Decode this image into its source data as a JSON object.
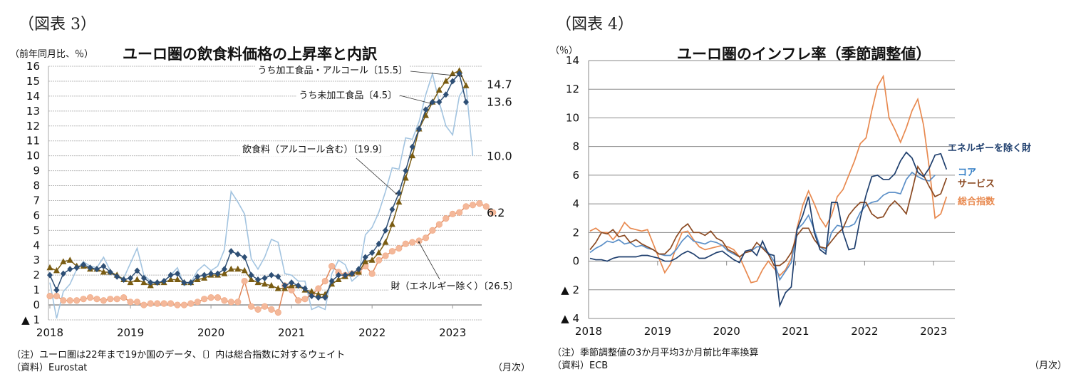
{
  "figures": {
    "fig3_label": "（図表 3）",
    "fig4_label": "（図表 4）"
  },
  "chart_data": [
    {
      "type": "line",
      "title": "ユーロ圏の飲食料価格の上昇率と内訳",
      "ylabel": "（前年同月比、％）",
      "xlabel": "（月次）",
      "ylim": [
        -1,
        16
      ],
      "yticks": [
        -1,
        0,
        1,
        2,
        3,
        4,
        5,
        6,
        7,
        8,
        9,
        10,
        11,
        12,
        13,
        14,
        15,
        16
      ],
      "ytick_labels": [
        "▲ 1",
        "0",
        "1",
        "2",
        "3",
        "4",
        "5",
        "6",
        "7",
        "8",
        "9",
        "10",
        "11",
        "12",
        "13",
        "14",
        "15",
        "16"
      ],
      "xticks": [
        "2018",
        "2019",
        "2020",
        "2021",
        "2022",
        "2023"
      ],
      "x_start": "2018-01",
      "x_end": "2023-04",
      "grid": true,
      "series": [
        {
          "name": "飲食料（アルコール含む）〔19.9〕",
          "color": "#2e4f75",
          "marker": "diamond",
          "end_label": "13.6",
          "values": [
            2.0,
            1.0,
            2.1,
            2.4,
            2.5,
            2.7,
            2.5,
            2.4,
            2.6,
            2.2,
            1.9,
            1.7,
            1.8,
            2.3,
            1.8,
            1.5,
            1.5,
            1.6,
            2.0,
            2.1,
            1.5,
            1.5,
            1.9,
            2.0,
            2.1,
            2.1,
            2.4,
            3.6,
            3.4,
            3.2,
            2.0,
            1.7,
            1.8,
            2.0,
            1.9,
            1.3,
            1.5,
            1.3,
            1.1,
            0.6,
            0.5,
            0.5,
            1.6,
            2.0,
            2.0,
            2.1,
            2.4,
            3.2,
            3.5,
            4.1,
            5.0,
            6.4,
            7.5,
            9.0,
            10.6,
            11.8,
            13.1,
            13.6,
            13.6,
            14.1,
            15.0,
            15.5,
            13.6
          ]
        },
        {
          "name": "うち加工食品・アルコール〔15.5〕",
          "color": "#7a5c12",
          "marker": "triangle",
          "end_label": "14.7",
          "values": [
            2.5,
            2.3,
            2.9,
            3.0,
            2.6,
            2.6,
            2.4,
            2.4,
            2.2,
            2.2,
            2.0,
            1.7,
            1.5,
            1.7,
            1.5,
            1.3,
            1.5,
            1.5,
            1.7,
            1.7,
            1.5,
            1.5,
            1.7,
            1.8,
            2.0,
            2.0,
            2.1,
            2.4,
            2.4,
            2.3,
            1.7,
            1.5,
            1.4,
            1.3,
            1.1,
            1.1,
            1.3,
            1.3,
            1.0,
            0.9,
            0.7,
            0.7,
            1.4,
            1.7,
            1.9,
            2.1,
            2.2,
            2.9,
            3.0,
            3.5,
            4.2,
            5.4,
            6.9,
            8.5,
            10.0,
            11.8,
            12.7,
            13.6,
            14.4,
            15.0,
            15.5,
            15.7,
            14.7
          ]
        },
        {
          "name": "うち未加工食品〔4.5〕",
          "color": "#a3c4e0",
          "marker": "none",
          "end_label": "10.0",
          "values": [
            1.5,
            -0.9,
            0.9,
            1.4,
            2.4,
            2.9,
            2.6,
            2.5,
            3.2,
            2.3,
            1.9,
            1.8,
            2.8,
            3.8,
            2.0,
            1.6,
            1.5,
            1.6,
            2.0,
            2.5,
            1.3,
            1.5,
            2.3,
            2.7,
            2.3,
            2.6,
            3.7,
            7.6,
            6.9,
            6.1,
            3.1,
            2.4,
            3.2,
            4.4,
            4.2,
            2.1,
            2.0,
            1.6,
            1.6,
            -0.3,
            -0.1,
            -0.3,
            2.1,
            3.0,
            2.7,
            1.6,
            2.0,
            4.7,
            5.2,
            6.2,
            7.6,
            9.2,
            9.1,
            11.2,
            11.1,
            12.3,
            14.1,
            15.5,
            13.6,
            12.0,
            11.4,
            14.0,
            14.7,
            10.0
          ]
        },
        {
          "name": "財（エネルギー除く）〔26.5〕",
          "color": "#f4b89a",
          "line_color": "#e0875a",
          "marker": "circle",
          "end_label": "6.2",
          "values": [
            0.6,
            0.6,
            0.3,
            0.3,
            0.3,
            0.4,
            0.5,
            0.4,
            0.3,
            0.4,
            0.4,
            0.5,
            0.2,
            0.2,
            0.0,
            0.1,
            0.1,
            0.1,
            0.1,
            0.0,
            0.0,
            0.1,
            0.2,
            0.4,
            0.5,
            0.5,
            0.3,
            0.2,
            0.2,
            1.6,
            -0.1,
            -0.3,
            -0.1,
            -0.3,
            -0.5,
            1.3,
            1.0,
            0.3,
            0.4,
            0.7,
            1.1,
            1.6,
            2.6,
            2.2,
            2.0,
            2.1,
            2.2,
            2.6,
            2.1,
            3.0,
            3.3,
            3.6,
            3.8,
            4.1,
            4.2,
            4.3,
            4.5,
            5.0,
            5.4,
            5.8,
            6.1,
            6.2,
            6.6,
            6.7,
            6.8,
            6.6,
            6.2
          ]
        }
      ],
      "annotations": [
        "うち加工食品・アルコール〔15.5〕",
        "うち未加工食品〔4.5〕",
        "飲食料（アルコール含む）〔19.9〕",
        "財（エネルギー除く）〔26.5〕"
      ],
      "note": "（注）ユーロ圏は22年まで19か国のデータ、〔〕内は総合指数に対するウェイト",
      "source": "（資料）Eurostat"
    },
    {
      "type": "line",
      "title": "ユーロ圏のインフレ率（季節調整値）",
      "ylabel": "（％）",
      "xlabel": "（月次）",
      "ylim": [
        -4,
        14
      ],
      "yticks": [
        -4,
        -2,
        0,
        2,
        4,
        6,
        8,
        10,
        12,
        14
      ],
      "ytick_labels": [
        "▲ 4",
        "▲ 2",
        "0",
        "2",
        "4",
        "6",
        "8",
        "10",
        "12",
        "14"
      ],
      "xticks": [
        "2018",
        "2019",
        "2020",
        "2021",
        "2022",
        "2023"
      ],
      "x_start": "2018-01",
      "x_end": "2023-04",
      "grid": true,
      "series": [
        {
          "name": "エネルギーを除く財",
          "color": "#1f3f6e",
          "values": [
            0.2,
            0.1,
            0.1,
            0.0,
            0.2,
            0.3,
            0.3,
            0.3,
            0.3,
            0.4,
            0.4,
            0.3,
            0.2,
            0.0,
            0.0,
            0.2,
            0.5,
            0.7,
            0.5,
            0.2,
            0.2,
            0.4,
            0.6,
            0.7,
            0.4,
            0.1,
            -0.1,
            0.7,
            0.8,
            0.4,
            1.4,
            0.5,
            0.4,
            -3.1,
            -2.2,
            -1.8,
            2.2,
            3.2,
            4.5,
            2.0,
            0.8,
            0.5,
            4.1,
            4.1,
            2.0,
            0.8,
            0.9,
            3.0,
            4.6,
            5.9,
            6.0,
            5.7,
            5.7,
            6.1,
            7.0,
            7.6,
            7.2,
            6.2,
            5.9,
            6.5,
            7.4,
            7.5,
            6.4
          ]
        },
        {
          "name": "コア",
          "color": "#5b8fc7",
          "values": [
            0.6,
            0.9,
            1.1,
            1.4,
            1.3,
            1.5,
            1.2,
            1.3,
            1.0,
            1.1,
            0.9,
            0.8,
            0.5,
            0.4,
            0.4,
            0.8,
            1.4,
            1.8,
            1.4,
            1.3,
            1.2,
            1.4,
            1.3,
            1.1,
            0.7,
            0.5,
            0.3,
            0.6,
            0.7,
            1.0,
            1.0,
            0.6,
            0.0,
            -1.3,
            -0.7,
            -0.1,
            2.2,
            2.6,
            3.2,
            2.2,
            1.0,
            0.7,
            2.0,
            2.5,
            2.4,
            2.4,
            2.6,
            3.4,
            3.9,
            4.1,
            4.2,
            4.6,
            4.8,
            4.8,
            4.7,
            5.7,
            6.2,
            5.9,
            5.7,
            5.6,
            6.0
          ]
        },
        {
          "name": "サービス",
          "color": "#8b4a22",
          "values": [
            0.8,
            1.3,
            2.0,
            1.9,
            2.2,
            1.7,
            1.8,
            1.3,
            1.5,
            1.2,
            1.0,
            0.8,
            0.5,
            0.5,
            0.9,
            1.7,
            2.3,
            2.6,
            2.0,
            2.0,
            1.8,
            2.1,
            1.6,
            1.4,
            0.8,
            0.6,
            0.3,
            0.6,
            0.7,
            1.3,
            0.9,
            0.5,
            -0.3,
            -0.3,
            0.0,
            0.6,
            1.8,
            2.3,
            2.3,
            1.5,
            1.0,
            0.9,
            1.4,
            1.9,
            2.3,
            3.2,
            3.7,
            4.1,
            4.1,
            3.3,
            3.0,
            3.1,
            3.8,
            4.2,
            3.8,
            3.3,
            4.9,
            6.6,
            6.0,
            5.2,
            4.5,
            4.7,
            5.8
          ]
        },
        {
          "name": "総合指数",
          "color": "#e8894f",
          "values": [
            2.1,
            2.3,
            2.0,
            2.0,
            1.5,
            2.0,
            2.7,
            2.3,
            2.2,
            2.1,
            2.2,
            1.2,
            0.2,
            -0.8,
            -0.2,
            1.0,
            2.0,
            2.1,
            1.5,
            1.0,
            0.8,
            0.9,
            1.0,
            1.1,
            1.0,
            0.8,
            0.3,
            -0.6,
            -1.5,
            -1.4,
            -0.6,
            0.0,
            -0.5,
            -1.0,
            -0.6,
            0.2,
            2.3,
            3.9,
            4.9,
            4.0,
            3.0,
            2.4,
            3.2,
            4.5,
            5.0,
            6.0,
            7.0,
            8.2,
            8.6,
            10.5,
            12.2,
            12.9,
            10.0,
            9.2,
            8.3,
            9.3,
            10.5,
            11.3,
            9.5,
            6.5,
            3.0,
            3.3,
            4.5
          ]
        }
      ],
      "legend": [
        {
          "label": "エネルギーを除く財",
          "color": "#1f3f6e"
        },
        {
          "label": "コア",
          "color": "#2e7bc4"
        },
        {
          "label": "サービス",
          "color": "#8b4a22"
        },
        {
          "label": "総合指数",
          "color": "#e8894f"
        }
      ],
      "legend_position": "right",
      "note": "（注）季節調整値の3か月平均3か月前比年率換算",
      "source": "（資料）ECB"
    }
  ]
}
